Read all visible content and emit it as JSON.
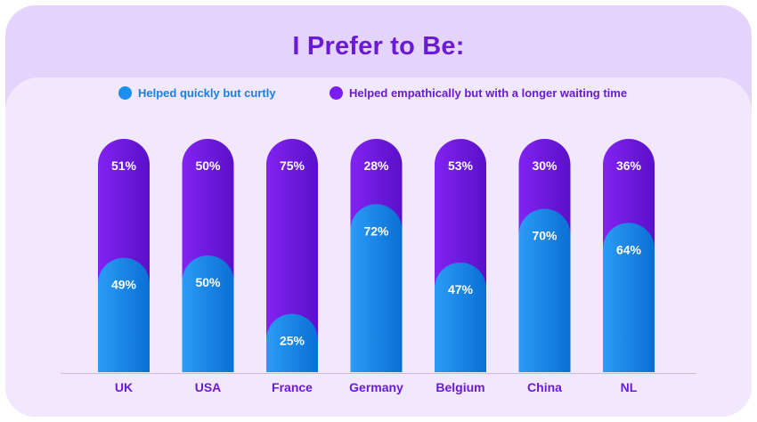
{
  "title": "I Prefer to Be:",
  "colors": {
    "quick": "#1b8ff0",
    "empathic": "#7a1df0",
    "title": "#6a1ad6",
    "quick_text": "#1b7fe0",
    "empathic_text": "#6a1ad6"
  },
  "legend": [
    {
      "label": "Helped quickly but curtly",
      "color": "#1b8ff0"
    },
    {
      "label": "Helped empathically but with a longer waiting time",
      "color": "#7a1df0"
    }
  ],
  "chart_data": {
    "type": "bar",
    "stacked": true,
    "categories": [
      "UK",
      "USA",
      "France",
      "Germany",
      "Belgium",
      "China",
      "NL"
    ],
    "series": [
      {
        "name": "Helped quickly but curtly",
        "values": [
          49,
          50,
          25,
          72,
          47,
          70,
          64
        ]
      },
      {
        "name": "Helped empathically but with a longer waiting time",
        "values": [
          51,
          50,
          75,
          28,
          53,
          30,
          36
        ]
      }
    ],
    "value_suffix": "%",
    "ylim": [
      0,
      100
    ],
    "grid": false,
    "legend_position": "top"
  }
}
